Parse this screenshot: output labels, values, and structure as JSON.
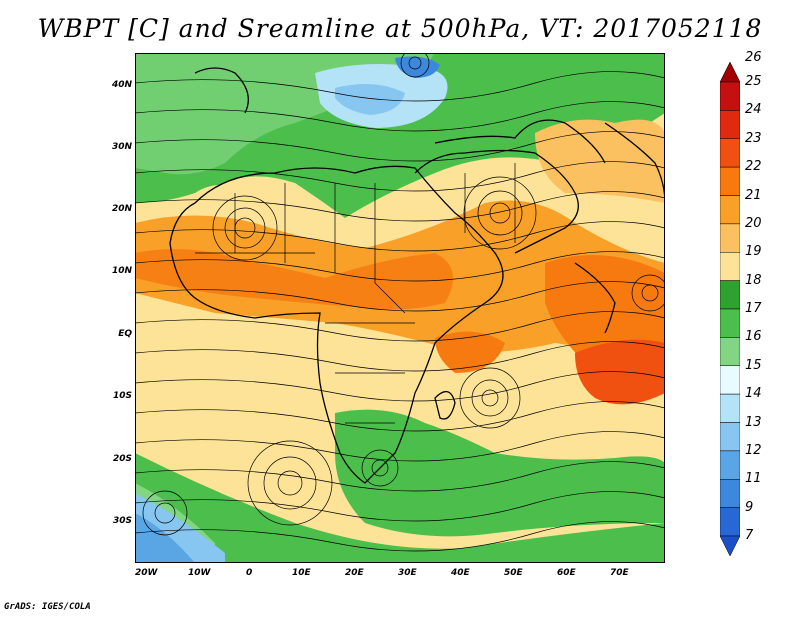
{
  "title": "WBPT [C] and Sreamline at 500hPa, VT: 2017052118",
  "footer": "GrADS: IGES/COLA",
  "lat_labels": [
    "40N",
    "30N",
    "20N",
    "10N",
    "EQ",
    "10S",
    "20S",
    "30S"
  ],
  "lon_labels": [
    "20W",
    "10W",
    "0",
    "10E",
    "20E",
    "30E",
    "40E",
    "50E",
    "60E",
    "70E"
  ],
  "colorbar": {
    "labels": [
      "26",
      "25",
      "24",
      "23",
      "22",
      "21",
      "20",
      "19",
      "18",
      "17",
      "16",
      "15",
      "14",
      "13",
      "12",
      "11",
      "9",
      "7"
    ],
    "colors": [
      "#a00000",
      "#c41010",
      "#e02a10",
      "#f05010",
      "#f67a10",
      "#f9a028",
      "#fbc060",
      "#fde398",
      "#2fa12f",
      "#4cbe4c",
      "#82d582",
      "#e8fbff",
      "#b4e2f6",
      "#86c6f0",
      "#5aa6e4",
      "#3c88dc",
      "#2868d4",
      "#1850c8"
    ]
  }
}
